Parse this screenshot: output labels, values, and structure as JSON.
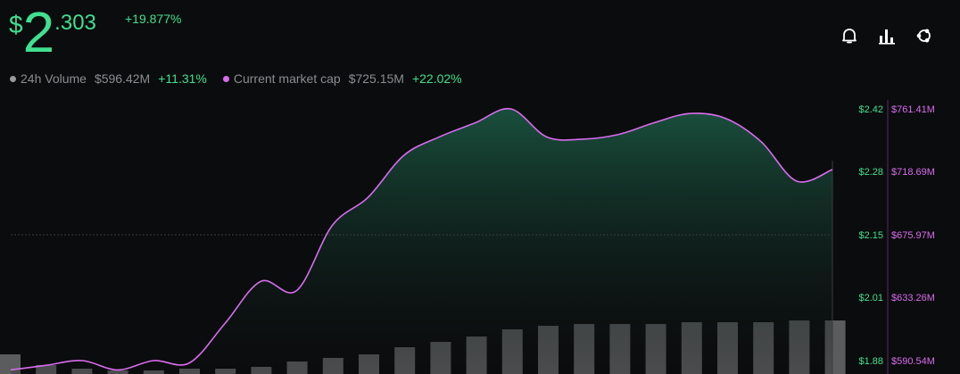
{
  "header": {
    "price_symbol": "$",
    "price_int": "2",
    "price_dec": ".303",
    "change": "+19.877%"
  },
  "stats": {
    "volume_label": "24h Volume",
    "volume_value": "$596.42M",
    "volume_change": "+11.31%",
    "mcap_label": "Current market cap",
    "mcap_value": "$725.15M",
    "mcap_change": "+22.02%"
  },
  "toolbar": {
    "icons": [
      "bell-icon",
      "bar-chart-icon",
      "share-icon"
    ]
  },
  "colors": {
    "price": "#40e090",
    "line": "#d96cf0",
    "volume_dot": "#9a9a9a",
    "mcap_dot": "#d96cf0",
    "bars": "#5a5c5d",
    "area_top": "#1a5340"
  },
  "chart_data": {
    "type": "area",
    "series": [
      {
        "name": "Current market cap",
        "axis": "left",
        "values": [
          1.86,
          1.87,
          1.88,
          1.86,
          1.88,
          1.875,
          1.96,
          2.05,
          2.03,
          2.17,
          2.23,
          2.32,
          2.36,
          2.39,
          2.42,
          2.36,
          2.355,
          2.365,
          2.39,
          2.41,
          2.4,
          2.35,
          2.265,
          2.29
        ]
      },
      {
        "name": "24h Volume",
        "type": "bar",
        "relative": [
          0.11,
          0.05,
          0.03,
          0.02,
          0.02,
          0.03,
          0.03,
          0.04,
          0.07,
          0.09,
          0.11,
          0.15,
          0.18,
          0.21,
          0.25,
          0.27,
          0.28,
          0.28,
          0.28,
          0.29,
          0.29,
          0.29,
          0.3,
          0.3
        ]
      }
    ],
    "left_axis": {
      "ticks": [
        "$2.42",
        "$2.28",
        "$2.15",
        "$2.01",
        "$1.88"
      ],
      "range": [
        1.88,
        2.42
      ]
    },
    "right_axis": {
      "ticks": [
        "$761.41M",
        "$718.69M",
        "$675.97M",
        "$633.26M",
        "$590.54M"
      ]
    },
    "reference_line": 2.15,
    "grid": false
  }
}
